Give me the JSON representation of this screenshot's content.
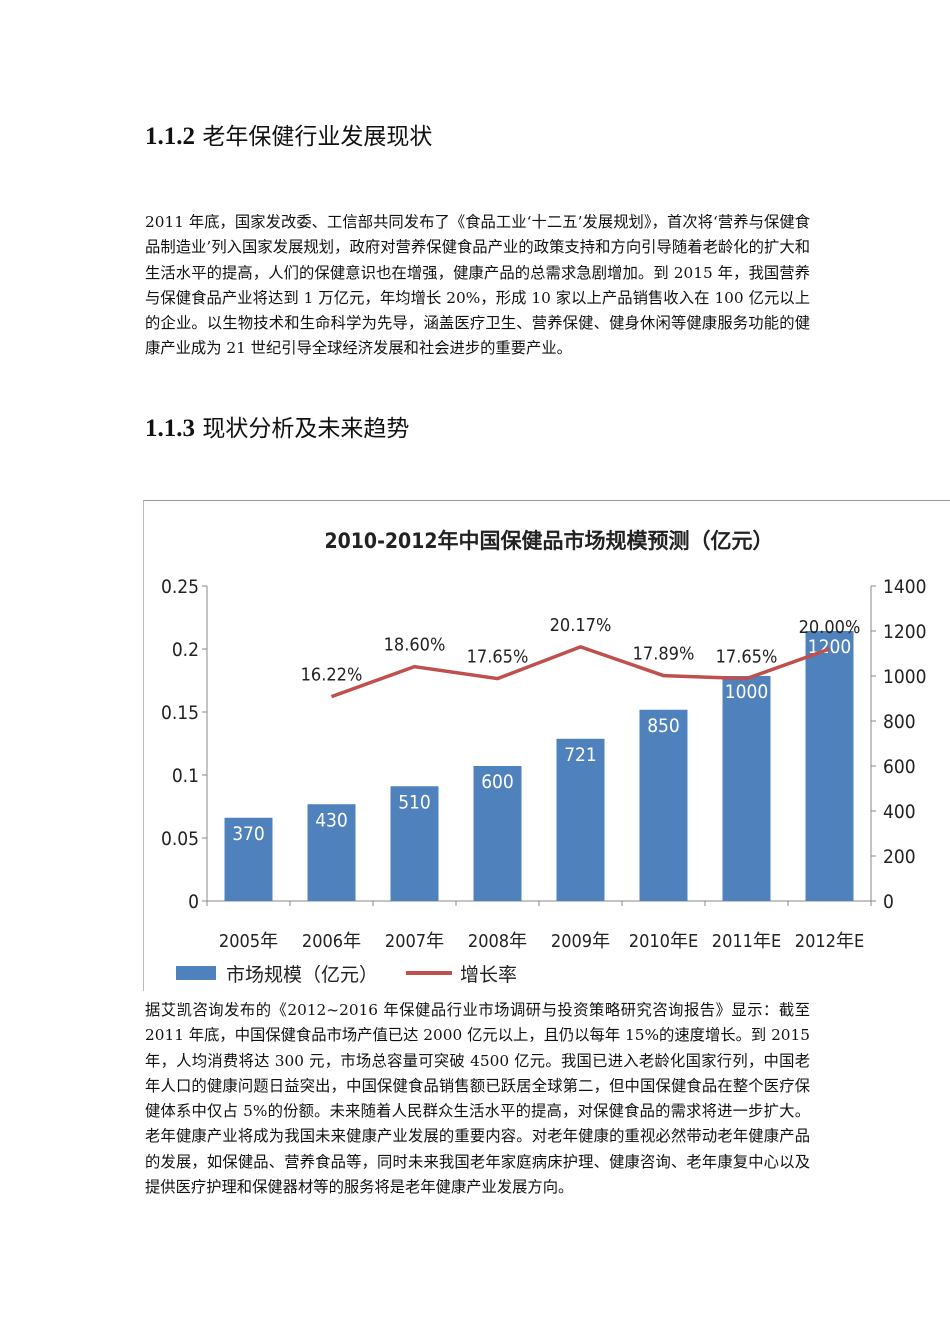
{
  "section1": {
    "number": "1.1.2",
    "title": "老年保健行业发展现状"
  },
  "paragraph1": "2011 年底，国家发改委、工信部共同发布了《食品工业‘十二五’发展规划》，首次将‘营养与保健食品制造业’列入国家发展规划，政府对营养保健食品产业的政策支持和方向引导随着老龄化的扩大和生活水平的提高，人们的保健意识也在增强，健康产品的总需求急剧增加。到 2015 年，我国营养与保健食品产业将达到 1 万亿元，年均增长 20%，形成 10 家以上产品销售收入在 100 亿元以上的企业。以生物技术和生命科学为先导，涵盖医疗卫生、营养保健、健身休闲等健康服务功能的健康产业成为 21 世纪引导全球经济发展和社会进步的重要产业。",
  "section2": {
    "number": "1.1.3",
    "title": "现状分析及未来趋势"
  },
  "paragraph2": "据艾凯咨询发布的《2012~2016 年保健品行业市场调研与投资策略研究咨询报告》显示：截至 2011 年底，中国保健食品市场产值已达 2000 亿元以上，且仍以每年 15%的速度增长。到 2015 年，人均消费将达 300 元，市场总容量可突破 4500 亿元。我国已进入老龄化国家行列，中国老年人口的健康问题日益突出，中国保健食品销售额已跃居全球第二，但中国保健食品在整个医疗保健体系中仅占 5%的份额。未来随着人民群众生活水平的提高，对保健食品的需求将进一步扩大。老年健康产业将成为我国未来健康产业发展的重要内容。对老年健康的重视必然带动老年健康产品的发展，如保健品、营养食品等，同时未来我国老年家庭病床护理、健康咨询、老年康复中心以及提供医疗护理和保健器材等的服务将是老年健康产业发展方向。",
  "chart_data": {
    "type": "bar+line",
    "title": "2010-2012年中国保健品市场规模预测（亿元）",
    "categories": [
      "2005年",
      "2006年",
      "2007年",
      "2008年",
      "2009年",
      "2010年E",
      "2011年E",
      "2012年E"
    ],
    "series": [
      {
        "name": "市场规模（亿元）",
        "type": "bar",
        "axis": "right",
        "color": "#4F81BD",
        "values": [
          370,
          430,
          510,
          600,
          721,
          850,
          1000,
          1200
        ],
        "labels": [
          "370",
          "430",
          "510",
          "600",
          "721",
          "850",
          "1000",
          "1200"
        ]
      },
      {
        "name": "增长率",
        "type": "line",
        "axis": "left",
        "color": "#C0504D",
        "values": [
          null,
          0.1622,
          0.186,
          0.1765,
          0.2017,
          0.1789,
          0.1765,
          0.2
        ],
        "labels": [
          "",
          "16.22%",
          "18.60%",
          "17.65%",
          "20.17%",
          "17.89%",
          "17.65%",
          "20.00%"
        ]
      }
    ],
    "left_axis": {
      "range": [
        0,
        0.25
      ],
      "ticks": [
        "0",
        "0.05",
        "0.1",
        "0.15",
        "0.2",
        "0.25"
      ]
    },
    "right_axis": {
      "range": [
        0,
        1400
      ],
      "ticks": [
        "0",
        "200",
        "400",
        "600",
        "800",
        "1000",
        "1200",
        "1400"
      ]
    },
    "legend": "bottom",
    "grid": false
  }
}
